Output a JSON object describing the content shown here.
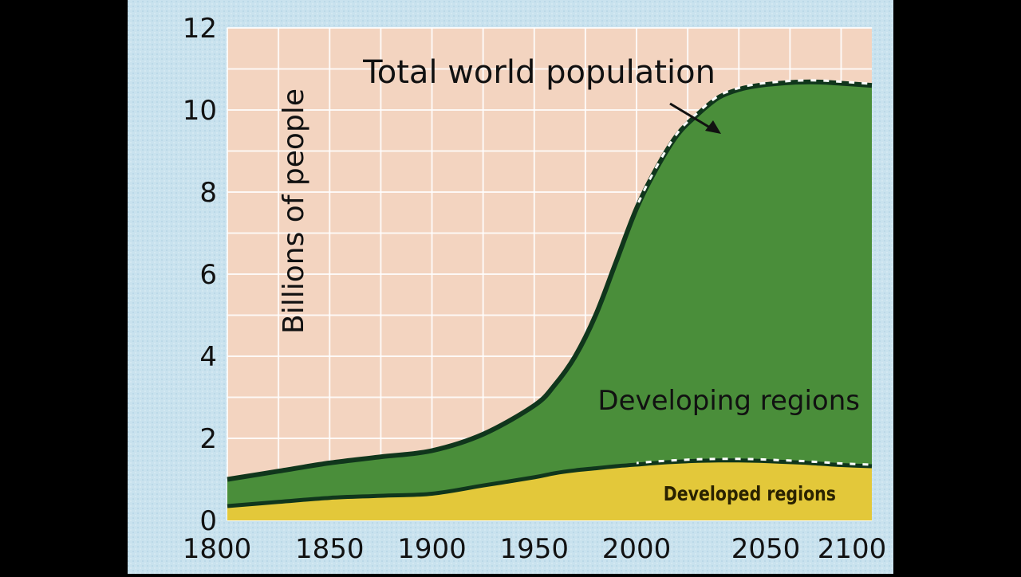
{
  "chart_data": {
    "type": "area",
    "ylabel": "Billions of people",
    "xlabel": "",
    "xlim": [
      1800,
      2115
    ],
    "ylim": [
      0,
      12
    ],
    "x_ticks": [
      1800,
      1850,
      1900,
      1950,
      2000,
      2050,
      2100
    ],
    "y_ticks": [
      0,
      2,
      4,
      6,
      8,
      10,
      12
    ],
    "grid": true,
    "stacked": true,
    "x": [
      1800,
      1825,
      1850,
      1875,
      1900,
      1925,
      1950,
      1960,
      1970,
      1980,
      1990,
      2000,
      2010,
      2020,
      2030,
      2040,
      2050,
      2060,
      2070,
      2080,
      2090,
      2100,
      2115
    ],
    "series": [
      {
        "name": "Developed regions",
        "color": "#e3c83a",
        "values": [
          0.35,
          0.45,
          0.55,
          0.6,
          0.65,
          0.85,
          1.05,
          1.15,
          1.22,
          1.27,
          1.32,
          1.36,
          1.4,
          1.43,
          1.45,
          1.46,
          1.46,
          1.45,
          1.43,
          1.41,
          1.38,
          1.35,
          1.32
        ]
      },
      {
        "name": "Developing regions",
        "color": "#4a8e3a",
        "values": [
          0.65,
          0.75,
          0.85,
          0.95,
          1.05,
          1.25,
          1.75,
          2.15,
          2.78,
          3.73,
          4.98,
          6.24,
          7.2,
          7.97,
          8.45,
          8.84,
          9.04,
          9.15,
          9.22,
          9.27,
          9.3,
          9.3,
          9.28
        ]
      }
    ],
    "total_series_label": "Total world population",
    "projection_start": 2000,
    "colors": {
      "plot_background": "#f3d4c0",
      "grid": "#ffffff",
      "total_outline": "#10361c",
      "projection_dash": "#ffffff",
      "panel_background": "#c9e2ee"
    }
  }
}
